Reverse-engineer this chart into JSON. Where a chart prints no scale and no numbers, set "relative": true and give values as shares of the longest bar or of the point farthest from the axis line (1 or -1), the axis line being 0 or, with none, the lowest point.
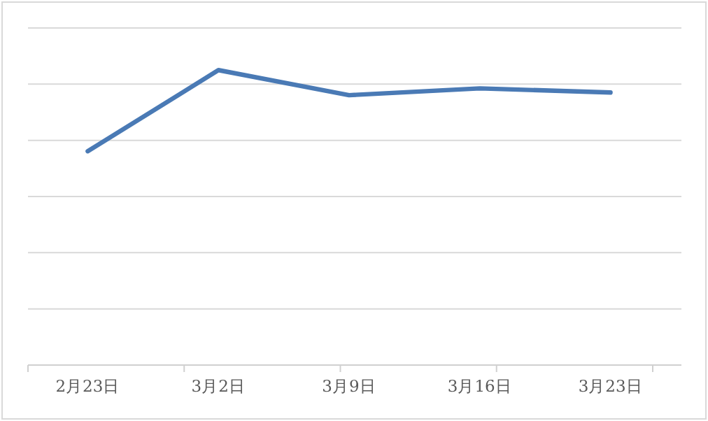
{
  "chart_data": {
    "type": "line",
    "relative": true,
    "grid": "y",
    "tick_labels": "x",
    "categories": [
      "2月23日",
      "3月2日",
      "3月9日",
      "3月16日",
      "3月23日"
    ],
    "series": [
      {
        "color": "#4a7ab5",
        "values": [
          0.725,
          1,
          0.915,
          0.938,
          0.924
        ]
      }
    ]
  }
}
